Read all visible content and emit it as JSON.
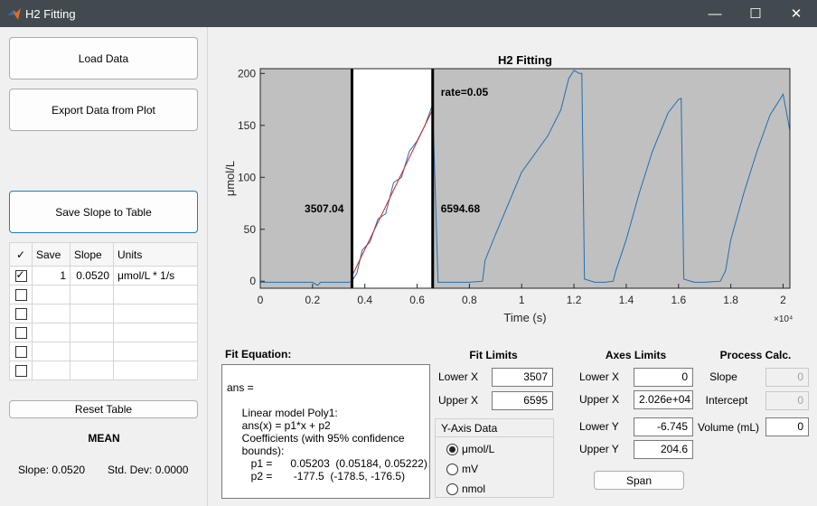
{
  "window": {
    "title": "H2 Fitting",
    "minimize_label": "—",
    "maximize_label": "☐",
    "close_label": "✕"
  },
  "left": {
    "load_button": "Load Data",
    "export_button": "Export Data from Plot",
    "save_slope_button": "Save Slope to Table",
    "table": {
      "headers": [
        "✓",
        "Save",
        "Slope",
        "Units"
      ],
      "rows": [
        {
          "checked": true,
          "save": "1",
          "slope": "0.0520",
          "units": "μmol/L * 1/s"
        },
        {
          "checked": false,
          "save": "",
          "slope": "",
          "units": ""
        },
        {
          "checked": false,
          "save": "",
          "slope": "",
          "units": ""
        },
        {
          "checked": false,
          "save": "",
          "slope": "",
          "units": ""
        },
        {
          "checked": false,
          "save": "",
          "slope": "",
          "units": ""
        },
        {
          "checked": false,
          "save": "",
          "slope": "",
          "units": ""
        }
      ]
    },
    "reset_button": "Reset Table",
    "mean_label": "MEAN",
    "slope_stat": "Slope: 0.0520",
    "std_stat": "Std. Dev: 0.0000"
  },
  "chart_data": {
    "type": "line",
    "title": "H2 Fitting",
    "xlabel": "Time (s)",
    "ylabel": "μmol/L",
    "x_exponent_label": "×10⁴",
    "xlim": [
      0,
      20260
    ],
    "ylim": [
      -6.745,
      204.6
    ],
    "x_ticks": [
      0,
      2000,
      4000,
      6000,
      8000,
      10000,
      12000,
      14000,
      16000,
      18000,
      20000
    ],
    "x_tick_labels": [
      "0",
      "0.2",
      "0.4",
      "0.6",
      "0.8",
      "1",
      "1.2",
      "1.4",
      "1.6",
      "1.8",
      "2"
    ],
    "y_ticks": [
      0,
      50,
      100,
      150,
      200
    ],
    "y_tick_labels": [
      "0",
      "50",
      "100",
      "150",
      "200"
    ],
    "fit_window": [
      3507,
      6595
    ],
    "annotations": {
      "lower_marker": "3507.04",
      "upper_marker": "6594.68",
      "rate": "rate=0.05"
    },
    "series": [
      {
        "color": "#1f6fb4",
        "x": [
          0,
          1000,
          2000,
          2200,
          2300,
          2400,
          3000,
          3400,
          3507,
          3700,
          3900,
          4200,
          4500,
          4800,
          5100,
          5400,
          5700,
          6000,
          6300,
          6594,
          6800,
          7500,
          8000,
          8500,
          8600,
          9000,
          10000,
          11000,
          11500,
          11800,
          12000,
          12200,
          12300,
          12400,
          12800,
          13200,
          13500,
          13600,
          14000,
          14500,
          15000,
          15600,
          16000,
          16100,
          16200,
          16600,
          17000,
          17600,
          17800,
          18000,
          18500,
          19000,
          19500,
          20000,
          20260
        ],
        "y": [
          -1,
          -1,
          -1,
          -4,
          -1,
          -1,
          -1,
          -1,
          0,
          8,
          30,
          38,
          60,
          65,
          95,
          100,
          125,
          135,
          150,
          170,
          -1,
          -1,
          -1,
          0,
          20,
          45,
          105,
          140,
          165,
          195,
          203,
          200,
          200,
          2,
          -1,
          -1,
          0,
          10,
          40,
          85,
          125,
          162,
          175,
          176,
          2,
          -1,
          -1,
          0,
          10,
          40,
          85,
          125,
          160,
          180,
          145
        ]
      },
      {
        "color": "#d81e1e",
        "x": [
          3507,
          6595
        ],
        "y": [
          4.9,
          165.5
        ]
      }
    ]
  },
  "fit_equation": {
    "label": "Fit Equation:",
    "text": "ans =\n\n     Linear model Poly1:\n     ans(x) = p1*x + p2\n     Coefficients (with 95% confidence\n     bounds):\n        p1 =      0.05203  (0.05184, 0.05222)\n        p2 =       -177.5  (-178.5, -176.5)"
  },
  "fit_limits": {
    "title": "Fit Limits",
    "lower_label": "Lower X",
    "lower_value": "3507",
    "upper_label": "Upper X",
    "upper_value": "6595"
  },
  "y_axis_data": {
    "title": "Y-Axis Data",
    "options": [
      "μmol/L",
      "mV",
      "nmol"
    ],
    "selected": "μmol/L"
  },
  "axes_limits": {
    "title": "Axes Limits",
    "lower_x_label": "Lower X",
    "lower_x": "0",
    "upper_x_label": "Upper X",
    "upper_x": "2.026e+04",
    "lower_y_label": "Lower Y",
    "lower_y": "-6.745",
    "upper_y_label": "Upper Y",
    "upper_y": "204.6",
    "span_button": "Span"
  },
  "process_calc": {
    "title": "Process Calc.",
    "slope_label": "Slope",
    "slope_value": "0",
    "intercept_label": "Intercept",
    "intercept_value": "0",
    "volume_label": "Volume (mL)",
    "volume_value": "0"
  }
}
